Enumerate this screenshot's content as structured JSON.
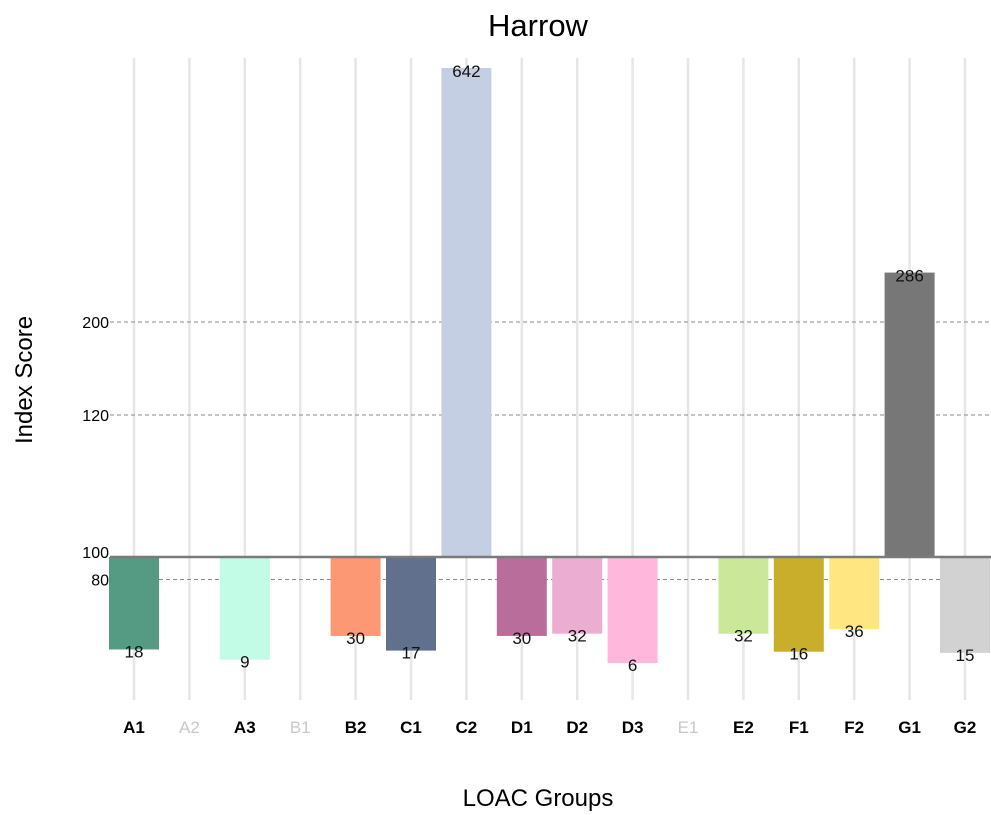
{
  "chart_data": {
    "type": "bar",
    "title": "Harrow",
    "xlabel": "LOAC Groups",
    "ylabel": "Index Score",
    "baseline": 100,
    "y_ticks": [
      "80",
      "100",
      "120",
      "200"
    ],
    "categories": [
      "A1",
      "A2",
      "A3",
      "B1",
      "B2",
      "C1",
      "C2",
      "D1",
      "D2",
      "D3",
      "E1",
      "E2",
      "F1",
      "F2",
      "G1",
      "G2"
    ],
    "values": [
      18,
      null,
      9,
      null,
      30,
      17,
      642,
      30,
      32,
      6,
      null,
      32,
      16,
      36,
      286,
      15
    ],
    "value_labels": [
      "18",
      "",
      "9",
      "",
      "30",
      "17",
      "642",
      "30",
      "32",
      "6",
      "",
      "32",
      "16",
      "36",
      "286",
      "15"
    ],
    "colors": [
      "#559a82",
      "",
      "#c2fbe6",
      "",
      "#fc9873",
      "#61708d",
      "#c4cfe4",
      "#b86d9b",
      "#ebaed2",
      "#ffb8dc",
      "",
      "#cbe89a",
      "#c9ae2c",
      "#ffe680",
      "#777777",
      "#d2d2d2"
    ],
    "faded_categories": [
      "A2",
      "B1",
      "E1"
    ],
    "grid": true,
    "scale": "piecewise"
  }
}
